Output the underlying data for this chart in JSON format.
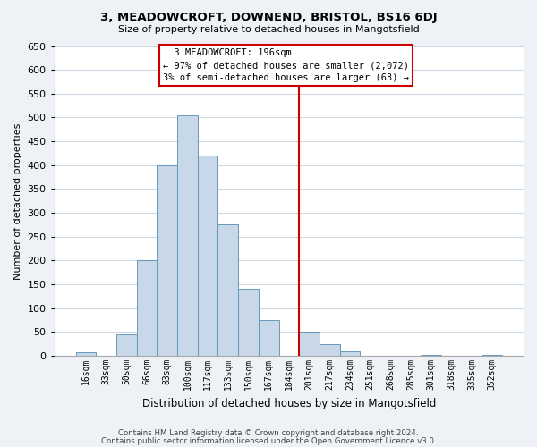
{
  "title": "3, MEADOWCROFT, DOWNEND, BRISTOL, BS16 6DJ",
  "subtitle": "Size of property relative to detached houses in Mangotsfield",
  "xlabel": "Distribution of detached houses by size in Mangotsfield",
  "ylabel": "Number of detached properties",
  "bar_labels": [
    "16sqm",
    "33sqm",
    "50sqm",
    "66sqm",
    "83sqm",
    "100sqm",
    "117sqm",
    "133sqm",
    "150sqm",
    "167sqm",
    "184sqm",
    "201sqm",
    "217sqm",
    "234sqm",
    "251sqm",
    "268sqm",
    "285sqm",
    "301sqm",
    "318sqm",
    "335sqm",
    "352sqm"
  ],
  "bar_values": [
    8,
    0,
    45,
    200,
    400,
    505,
    420,
    275,
    140,
    75,
    0,
    50,
    25,
    10,
    0,
    0,
    0,
    2,
    0,
    0,
    2
  ],
  "bar_color": "#c8d8e8",
  "bar_edge_color": "#6699bb",
  "vline_color": "#cc0000",
  "annotation_title": "3 MEADOWCROFT: 196sqm",
  "annotation_line1": "← 97% of detached houses are smaller (2,072)",
  "annotation_line2": "3% of semi-detached houses are larger (63) →",
  "annotation_box_color": "#ffffff",
  "annotation_box_edge": "#cc0000",
  "ylim": [
    0,
    650
  ],
  "yticks": [
    0,
    50,
    100,
    150,
    200,
    250,
    300,
    350,
    400,
    450,
    500,
    550,
    600,
    650
  ],
  "footnote1": "Contains HM Land Registry data © Crown copyright and database right 2024.",
  "footnote2": "Contains public sector information licensed under the Open Government Licence v3.0.",
  "bg_color": "#eef2f7",
  "plot_bg_color": "#ffffff",
  "grid_color": "#ccd8e4"
}
